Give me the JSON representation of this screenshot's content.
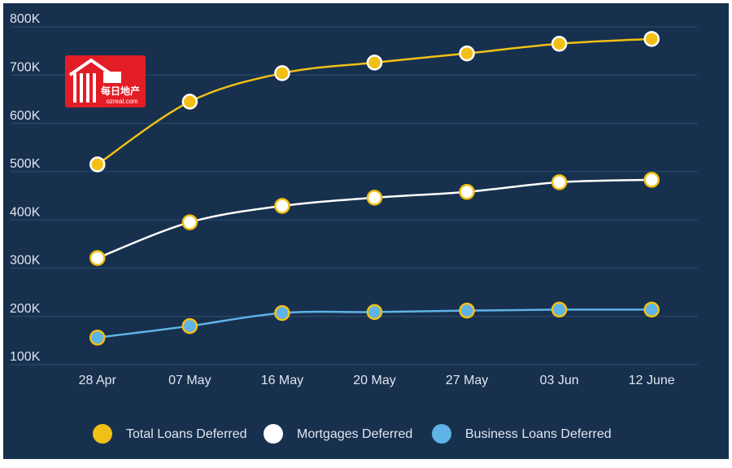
{
  "chart_data": {
    "type": "line",
    "categories": [
      "28 Apr",
      "07 May",
      "16 May",
      "20 May",
      "27 May",
      "03 Jun",
      "12 June"
    ],
    "series": [
      {
        "name": "Total Loans Deferred",
        "color": "#f2c014",
        "values": [
          515000,
          645000,
          704000,
          726000,
          745000,
          765000,
          775000
        ]
      },
      {
        "name": "Mortgages Deferred",
        "color": "#ffffff",
        "values": [
          321000,
          395000,
          429000,
          446000,
          458000,
          478000,
          483000
        ]
      },
      {
        "name": "Business Loans Deferred",
        "color": "#5fb3e6",
        "values": [
          156000,
          180000,
          207000,
          209000,
          212000,
          214000,
          214000
        ]
      }
    ],
    "ylim": [
      100000,
      800000
    ],
    "yticks": [
      {
        "value": 100000,
        "label": "100K"
      },
      {
        "value": 200000,
        "label": "200K"
      },
      {
        "value": 300000,
        "label": "300K"
      },
      {
        "value": 400000,
        "label": "400K"
      },
      {
        "value": 500000,
        "label": "500K"
      },
      {
        "value": 600000,
        "label": "600K"
      },
      {
        "value": 700000,
        "label": "700K"
      },
      {
        "value": 800000,
        "label": "800K"
      }
    ],
    "grid": true,
    "marker_stroke": "#f2c014",
    "watermark": {
      "name": "每日地产",
      "site": "ozreal.com"
    }
  }
}
